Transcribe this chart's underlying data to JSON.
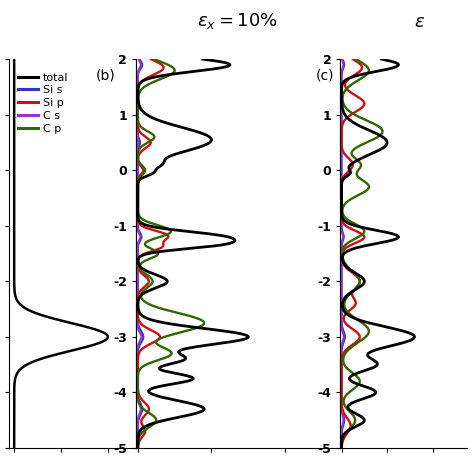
{
  "title_c": "$\\varepsilon_x = 10\\%$",
  "title_d": "$\\varepsilon$",
  "ylim": [
    -5,
    2
  ],
  "yticks": [
    -5,
    -4,
    -3,
    -2,
    -1,
    0,
    1,
    2
  ],
  "legend_labels": [
    "total",
    "Si s",
    "Si p",
    "C s",
    "C p"
  ],
  "legend_colors": [
    "#000000",
    "#3333cc",
    "#cc1111",
    "#9933cc",
    "#336600"
  ],
  "panel_b_label": "(b)",
  "panel_c_label": "(c)",
  "background_color": "#ffffff"
}
